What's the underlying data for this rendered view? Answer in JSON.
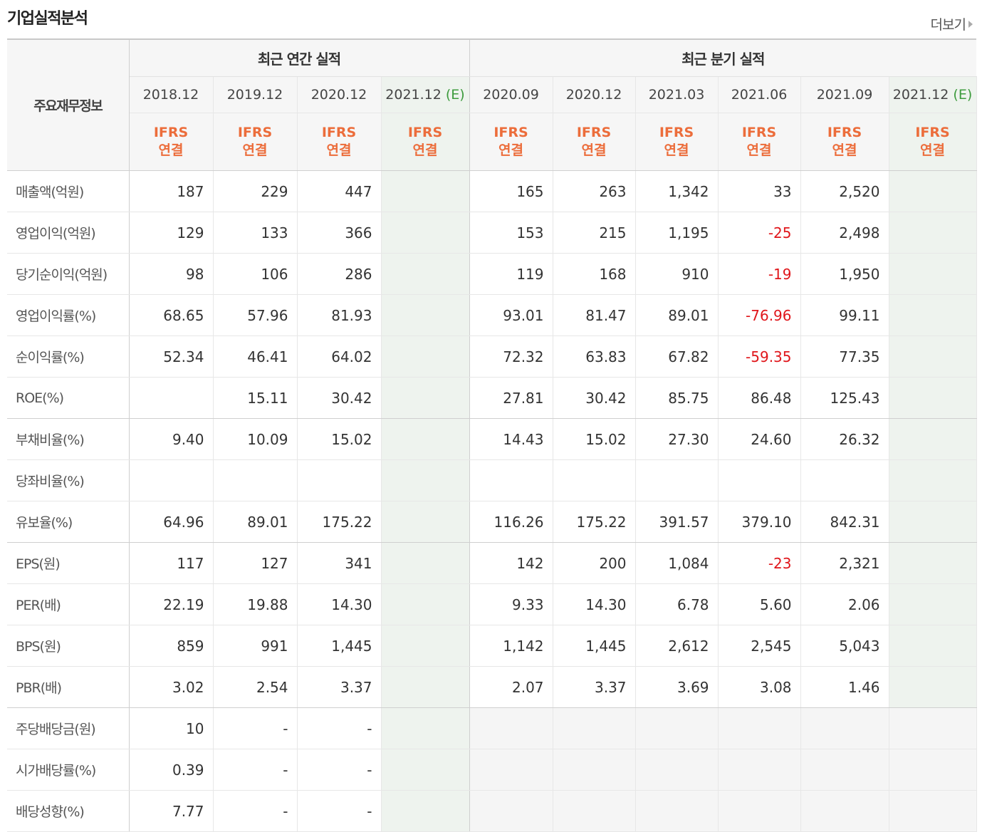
{
  "title": "기업실적분석",
  "more_label": "더보기",
  "header": {
    "row_label": "주요재무정보",
    "annual_label": "최근 연간 실적",
    "quarter_label": "최근 분기 실적",
    "annual_periods": [
      "2018.12",
      "2019.12",
      "2020.12",
      "2021.12"
    ],
    "quarter_periods": [
      "2020.09",
      "2020.12",
      "2021.03",
      "2021.06",
      "2021.09",
      "2021.12"
    ],
    "estimate_tag": "(E)",
    "ifrs_line1": "IFRS",
    "ifrs_line2": "연결"
  },
  "rows": [
    {
      "label": "매출액(억원)",
      "annual": [
        "187",
        "229",
        "447",
        ""
      ],
      "quarter": [
        "165",
        "263",
        "1,342",
        "33",
        "2,520",
        ""
      ]
    },
    {
      "label": "영업이익(억원)",
      "annual": [
        "129",
        "133",
        "366",
        ""
      ],
      "quarter": [
        "153",
        "215",
        "1,195",
        "-25",
        "2,498",
        ""
      ]
    },
    {
      "label": "당기순이익(억원)",
      "annual": [
        "98",
        "106",
        "286",
        ""
      ],
      "quarter": [
        "119",
        "168",
        "910",
        "-19",
        "1,950",
        ""
      ]
    },
    {
      "label": "영업이익률(%)",
      "annual": [
        "68.65",
        "57.96",
        "81.93",
        ""
      ],
      "quarter": [
        "93.01",
        "81.47",
        "89.01",
        "-76.96",
        "99.11",
        ""
      ]
    },
    {
      "label": "순이익률(%)",
      "annual": [
        "52.34",
        "46.41",
        "64.02",
        ""
      ],
      "quarter": [
        "72.32",
        "63.83",
        "67.82",
        "-59.35",
        "77.35",
        ""
      ]
    },
    {
      "label": "ROE(%)",
      "annual": [
        "",
        "15.11",
        "30.42",
        ""
      ],
      "quarter": [
        "27.81",
        "30.42",
        "85.75",
        "86.48",
        "125.43",
        ""
      ]
    },
    {
      "label": "부채비율(%)",
      "annual": [
        "9.40",
        "10.09",
        "15.02",
        ""
      ],
      "quarter": [
        "14.43",
        "15.02",
        "27.30",
        "24.60",
        "26.32",
        ""
      ]
    },
    {
      "label": "당좌비율(%)",
      "annual": [
        "",
        "",
        "",
        ""
      ],
      "quarter": [
        "",
        "",
        "",
        "",
        "",
        ""
      ]
    },
    {
      "label": "유보율(%)",
      "annual": [
        "64.96",
        "89.01",
        "175.22",
        ""
      ],
      "quarter": [
        "116.26",
        "175.22",
        "391.57",
        "379.10",
        "842.31",
        ""
      ]
    },
    {
      "label": "EPS(원)",
      "annual": [
        "117",
        "127",
        "341",
        ""
      ],
      "quarter": [
        "142",
        "200",
        "1,084",
        "-23",
        "2,321",
        ""
      ]
    },
    {
      "label": "PER(배)",
      "annual": [
        "22.19",
        "19.88",
        "14.30",
        ""
      ],
      "quarter": [
        "9.33",
        "14.30",
        "6.78",
        "5.60",
        "2.06",
        ""
      ]
    },
    {
      "label": "BPS(원)",
      "annual": [
        "859",
        "991",
        "1,445",
        ""
      ],
      "quarter": [
        "1,142",
        "1,445",
        "2,612",
        "2,545",
        "5,043",
        ""
      ]
    },
    {
      "label": "PBR(배)",
      "annual": [
        "3.02",
        "2.54",
        "3.37",
        ""
      ],
      "quarter": [
        "2.07",
        "3.37",
        "3.69",
        "3.08",
        "1.46",
        ""
      ]
    },
    {
      "label": "주당배당금(원)",
      "annual": [
        "10",
        "-",
        "-",
        ""
      ],
      "quarter": [
        "",
        "",
        "",
        "",
        "",
        ""
      ]
    },
    {
      "label": "시가배당률(%)",
      "annual": [
        "0.39",
        "-",
        "-",
        ""
      ],
      "quarter": [
        "",
        "",
        "",
        "",
        "",
        ""
      ]
    },
    {
      "label": "배당성향(%)",
      "annual": [
        "7.77",
        "-",
        "-",
        ""
      ],
      "quarter": [
        "",
        "",
        "",
        "",
        "",
        ""
      ]
    }
  ],
  "colors": {
    "negative": "#e0161b",
    "ifrs": "#ec6d3b",
    "estimate_tag": "#3d9b3d"
  }
}
